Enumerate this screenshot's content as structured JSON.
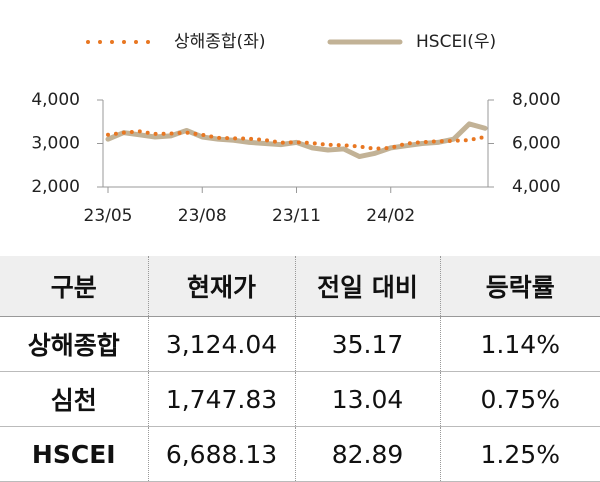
{
  "chart_data": {
    "type": "line",
    "categories": [
      "23/05",
      null,
      null,
      null,
      null,
      null,
      "23/08",
      null,
      null,
      null,
      null,
      null,
      "23/11",
      null,
      null,
      null,
      null,
      null,
      "24/02",
      null,
      null,
      null,
      null,
      null,
      null
    ],
    "series": [
      {
        "name": "상해종합(좌)",
        "color": "#E87722",
        "style": "dotted",
        "values": [
          3200,
          3250,
          3280,
          3220,
          3230,
          3250,
          3200,
          3130,
          3120,
          3110,
          3080,
          3020,
          3030,
          3010,
          2970,
          2960,
          2930,
          2880,
          2900,
          3000,
          3030,
          3050,
          3060,
          3080,
          3150
        ]
      },
      {
        "name": "HSCEI(우)",
        "color": "#C2B296",
        "style": "solid",
        "axis": "y2",
        "values": [
          6200,
          6500,
          6400,
          6300,
          6350,
          6600,
          6300,
          6200,
          6150,
          6050,
          6000,
          5950,
          6050,
          5800,
          5700,
          5750,
          5400,
          5550,
          5800,
          5900,
          6000,
          6050,
          6200,
          6900,
          6700
        ]
      }
    ],
    "ylim": [
      2000,
      4000
    ],
    "yticks": [
      {
        "value": 2000,
        "label": "2,000"
      },
      {
        "value": 3000,
        "label": "3,000"
      },
      {
        "value": 4000,
        "label": "4,000"
      }
    ],
    "y2lim": [
      4000,
      8000
    ],
    "y2ticks": [
      {
        "value": 4000,
        "label": "4,000"
      },
      {
        "value": 6000,
        "label": "6,000"
      },
      {
        "value": 8000,
        "label": "8,000"
      }
    ]
  },
  "table": {
    "header": [
      "구분",
      "현재가",
      "전일 대비",
      "등락률"
    ],
    "rows": [
      [
        "상해종합",
        "3,124.04",
        "35.17",
        "1.14%"
      ],
      [
        "심천",
        "1,747.83",
        "13.04",
        "0.75%"
      ],
      [
        "HSCEI",
        "6,688.13",
        "82.89",
        "1.25%"
      ]
    ]
  }
}
